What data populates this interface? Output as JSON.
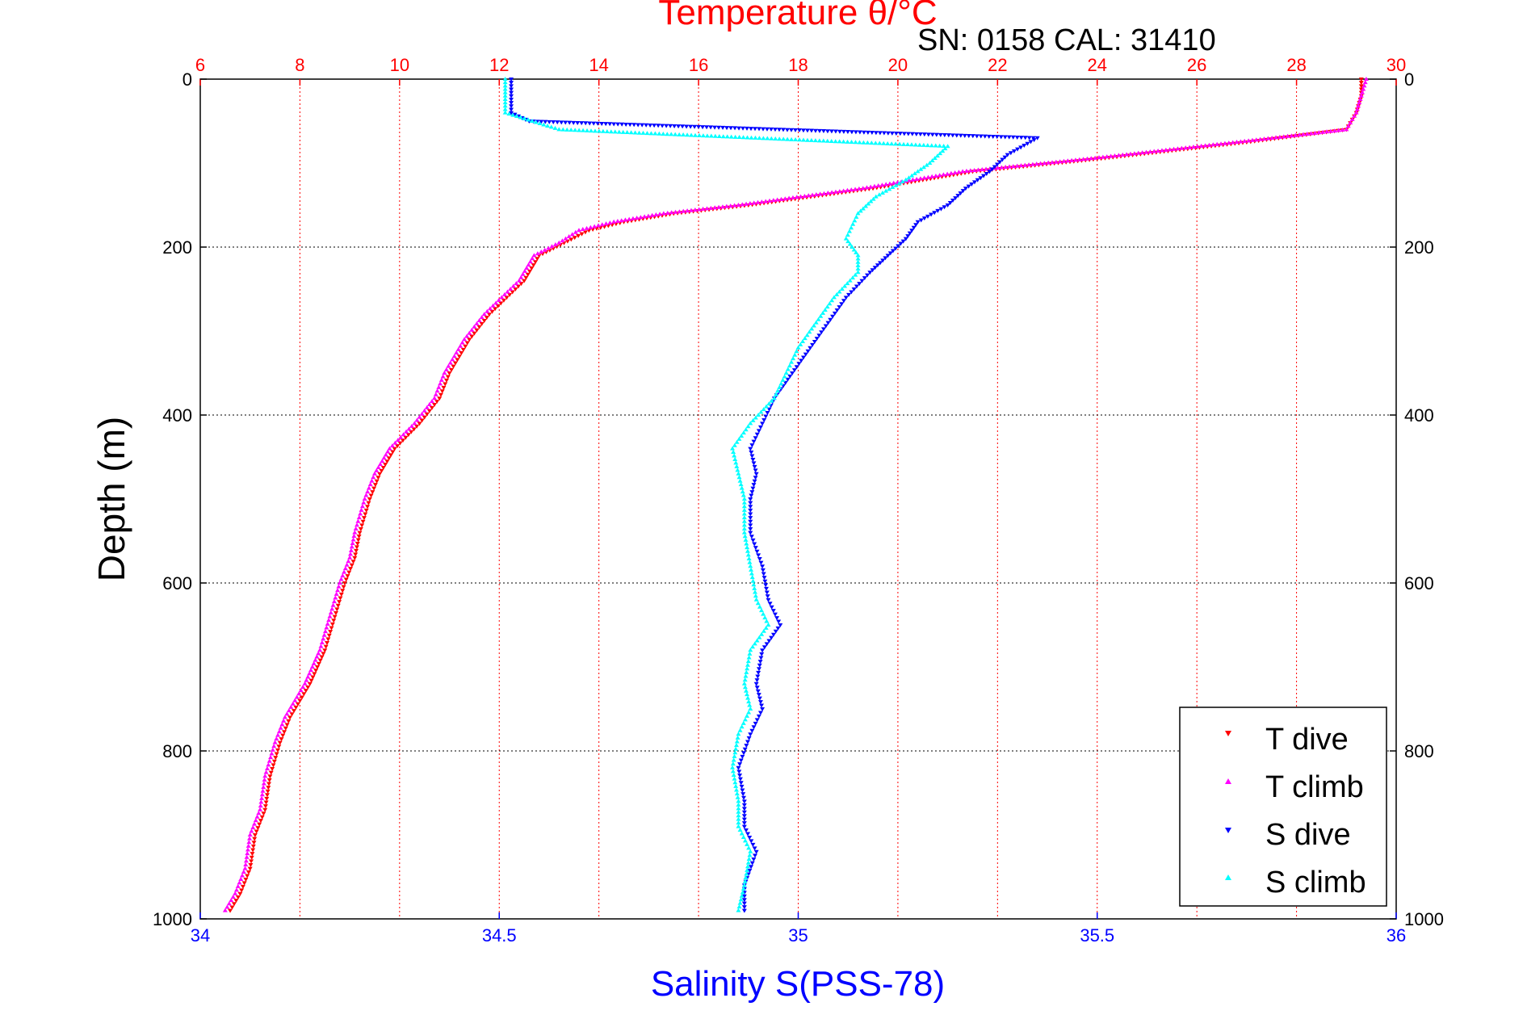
{
  "chart_data": {
    "type": "scatter",
    "title": "Temperature θ/°C",
    "subtitle": "SN: 0158  CAL: 31410",
    "ylabel": "Depth (m)",
    "xlabel_bottom": "Salinity S(PSS-78)",
    "y_axis": {
      "range": [
        0,
        1000
      ],
      "inverted": true,
      "ticks": [
        0,
        200,
        400,
        600,
        800,
        1000
      ]
    },
    "x_top_temperature": {
      "range": [
        6,
        30
      ],
      "ticks": [
        6,
        8,
        10,
        12,
        14,
        16,
        18,
        20,
        22,
        24,
        26,
        28,
        30
      ],
      "color": "#ff0000"
    },
    "x_bottom_salinity": {
      "range": [
        34,
        36
      ],
      "ticks": [
        "34",
        "34.5",
        "35",
        "35.5",
        "36"
      ],
      "color": "#0000ff"
    },
    "grid": true,
    "legend_placement": "bottom-right",
    "series": [
      {
        "name": "T dive",
        "axis": "temperature",
        "color": "#ff0000",
        "marker": "triangle-down",
        "points": [
          [
            29.3,
            0
          ],
          [
            29.3,
            20
          ],
          [
            29.2,
            40
          ],
          [
            29.0,
            60
          ],
          [
            27.0,
            75
          ],
          [
            24.0,
            95
          ],
          [
            21.5,
            110
          ],
          [
            19.5,
            130
          ],
          [
            17.0,
            150
          ],
          [
            15.5,
            160
          ],
          [
            14.5,
            170
          ],
          [
            13.8,
            180
          ],
          [
            13.3,
            195
          ],
          [
            12.8,
            210
          ],
          [
            12.5,
            240
          ],
          [
            11.8,
            280
          ],
          [
            11.4,
            310
          ],
          [
            11.0,
            350
          ],
          [
            10.8,
            380
          ],
          [
            10.4,
            410
          ],
          [
            9.9,
            440
          ],
          [
            9.6,
            470
          ],
          [
            9.4,
            500
          ],
          [
            9.2,
            540
          ],
          [
            9.1,
            570
          ],
          [
            8.9,
            600
          ],
          [
            8.7,
            640
          ],
          [
            8.5,
            680
          ],
          [
            8.2,
            720
          ],
          [
            7.8,
            760
          ],
          [
            7.6,
            790
          ],
          [
            7.4,
            830
          ],
          [
            7.3,
            870
          ],
          [
            7.1,
            900
          ],
          [
            7.0,
            940
          ],
          [
            6.8,
            970
          ],
          [
            6.6,
            990
          ]
        ]
      },
      {
        "name": "T climb",
        "axis": "temperature",
        "color": "#ff00ff",
        "marker": "triangle-up",
        "points": [
          [
            29.4,
            0
          ],
          [
            29.3,
            20
          ],
          [
            29.2,
            40
          ],
          [
            29.0,
            60
          ],
          [
            26.8,
            75
          ],
          [
            23.8,
            95
          ],
          [
            21.3,
            110
          ],
          [
            19.3,
            130
          ],
          [
            16.8,
            150
          ],
          [
            15.3,
            160
          ],
          [
            14.3,
            170
          ],
          [
            13.6,
            180
          ],
          [
            13.2,
            195
          ],
          [
            12.7,
            210
          ],
          [
            12.4,
            240
          ],
          [
            11.7,
            280
          ],
          [
            11.3,
            310
          ],
          [
            10.9,
            350
          ],
          [
            10.7,
            380
          ],
          [
            10.3,
            410
          ],
          [
            9.8,
            440
          ],
          [
            9.5,
            470
          ],
          [
            9.3,
            500
          ],
          [
            9.1,
            540
          ],
          [
            9.0,
            570
          ],
          [
            8.8,
            600
          ],
          [
            8.6,
            640
          ],
          [
            8.4,
            680
          ],
          [
            8.1,
            720
          ],
          [
            7.7,
            760
          ],
          [
            7.5,
            790
          ],
          [
            7.3,
            830
          ],
          [
            7.2,
            870
          ],
          [
            7.0,
            900
          ],
          [
            6.9,
            940
          ],
          [
            6.7,
            970
          ],
          [
            6.5,
            990
          ]
        ]
      },
      {
        "name": "S dive",
        "axis": "salinity",
        "color": "#0000ff",
        "marker": "triangle-down",
        "points": [
          [
            34.52,
            0
          ],
          [
            34.52,
            20
          ],
          [
            34.52,
            40
          ],
          [
            34.55,
            50
          ],
          [
            35.4,
            70
          ],
          [
            35.35,
            90
          ],
          [
            35.32,
            110
          ],
          [
            35.28,
            130
          ],
          [
            35.25,
            150
          ],
          [
            35.2,
            170
          ],
          [
            35.18,
            190
          ],
          [
            35.15,
            210
          ],
          [
            35.12,
            230
          ],
          [
            35.08,
            260
          ],
          [
            35.05,
            290
          ],
          [
            35.02,
            320
          ],
          [
            34.99,
            350
          ],
          [
            34.96,
            380
          ],
          [
            34.94,
            410
          ],
          [
            34.92,
            440
          ],
          [
            34.93,
            470
          ],
          [
            34.92,
            500
          ],
          [
            34.92,
            540
          ],
          [
            34.94,
            580
          ],
          [
            34.95,
            620
          ],
          [
            34.97,
            650
          ],
          [
            34.94,
            680
          ],
          [
            34.93,
            720
          ],
          [
            34.94,
            750
          ],
          [
            34.92,
            780
          ],
          [
            34.9,
            820
          ],
          [
            34.91,
            860
          ],
          [
            34.91,
            890
          ],
          [
            34.93,
            920
          ],
          [
            34.91,
            960
          ],
          [
            34.91,
            990
          ]
        ]
      },
      {
        "name": "S climb",
        "axis": "salinity",
        "color": "#00ffff",
        "marker": "triangle-up",
        "points": [
          [
            34.51,
            0
          ],
          [
            34.51,
            20
          ],
          [
            34.51,
            40
          ],
          [
            34.6,
            60
          ],
          [
            35.25,
            80
          ],
          [
            35.22,
            100
          ],
          [
            35.18,
            120
          ],
          [
            35.13,
            140
          ],
          [
            35.1,
            160
          ],
          [
            35.08,
            190
          ],
          [
            35.1,
            210
          ],
          [
            35.1,
            230
          ],
          [
            35.06,
            260
          ],
          [
            35.03,
            290
          ],
          [
            35.0,
            320
          ],
          [
            34.98,
            350
          ],
          [
            34.96,
            380
          ],
          [
            34.92,
            410
          ],
          [
            34.89,
            440
          ],
          [
            34.9,
            470
          ],
          [
            34.91,
            500
          ],
          [
            34.91,
            540
          ],
          [
            34.92,
            580
          ],
          [
            34.93,
            620
          ],
          [
            34.95,
            650
          ],
          [
            34.92,
            680
          ],
          [
            34.91,
            720
          ],
          [
            34.92,
            750
          ],
          [
            34.9,
            780
          ],
          [
            34.89,
            820
          ],
          [
            34.9,
            860
          ],
          [
            34.9,
            890
          ],
          [
            34.92,
            920
          ],
          [
            34.91,
            960
          ],
          [
            34.9,
            990
          ]
        ]
      }
    ]
  }
}
